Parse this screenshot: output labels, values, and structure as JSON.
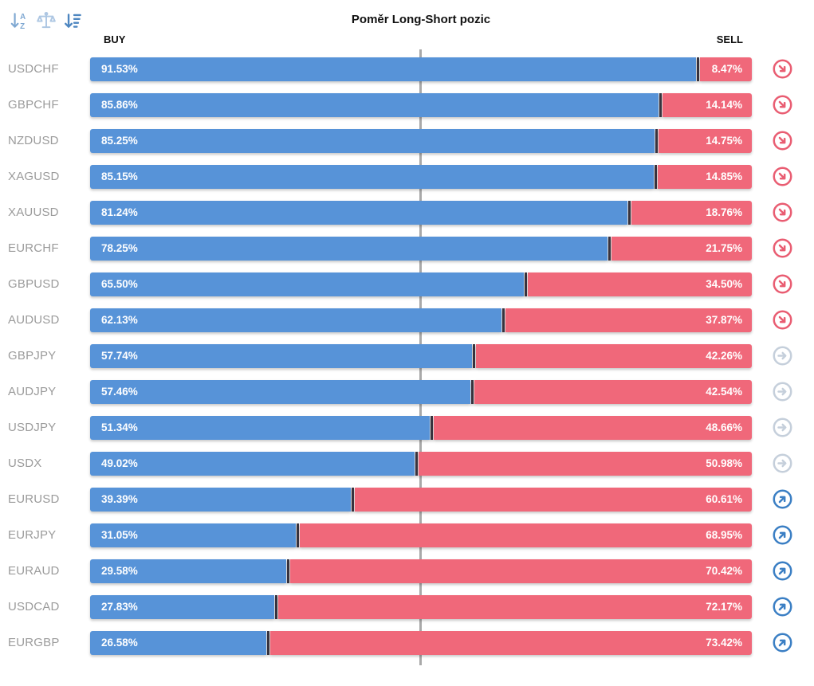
{
  "title": "Poměr Long-Short pozic",
  "columns": {
    "buy": "BUY",
    "sell": "SELL"
  },
  "toolbar": {
    "icons": [
      {
        "name": "sort-alphabetical-icon",
        "color": "#7fa8d2"
      },
      {
        "name": "scales-balance-icon",
        "color": "#aec7e3"
      },
      {
        "name": "sort-amount-desc-icon",
        "color": "#4d86c0"
      }
    ]
  },
  "colors": {
    "buy_bar": "#5793d8",
    "sell_bar": "#f0687a",
    "bar_divider": "#3a3540",
    "center_line": "#a9a9a9",
    "pair_label": "#9b9b9b",
    "signal_down": "#e95d72",
    "signal_neutral": "#c5cfdb",
    "signal_up": "#3b7fc4"
  },
  "chart_data": {
    "type": "bar",
    "orientation": "horizontal",
    "stacked": true,
    "title": "Poměr Long-Short pozic",
    "xlim": [
      0,
      100
    ],
    "grid": false,
    "legend_position": "top (BUY left, SELL right)",
    "categories": [
      "USDCHF",
      "GBPCHF",
      "NZDUSD",
      "XAGUSD",
      "XAUUSD",
      "EURCHF",
      "GBPUSD",
      "AUDUSD",
      "GBPJPY",
      "AUDJPY",
      "USDJPY",
      "USDX",
      "EURUSD",
      "EURJPY",
      "EURAUD",
      "USDCAD",
      "EURGBP"
    ],
    "series": [
      {
        "name": "BUY",
        "values": [
          91.53,
          85.86,
          85.25,
          85.15,
          81.24,
          78.25,
          65.5,
          62.13,
          57.74,
          57.46,
          51.34,
          49.02,
          39.39,
          31.05,
          29.58,
          27.83,
          26.58
        ]
      },
      {
        "name": "SELL",
        "values": [
          8.47,
          14.14,
          14.75,
          14.85,
          18.76,
          21.75,
          34.5,
          37.87,
          42.26,
          42.54,
          48.66,
          50.98,
          60.61,
          68.95,
          70.42,
          72.17,
          73.42
        ]
      }
    ],
    "signals": [
      "down",
      "down",
      "down",
      "down",
      "down",
      "down",
      "down",
      "down",
      "neutral",
      "neutral",
      "neutral",
      "neutral",
      "up",
      "up",
      "up",
      "up",
      "up"
    ]
  },
  "rows": [
    {
      "pair": "USDCHF",
      "buy_label": "91.53%",
      "sell_label": "8.47%",
      "buy": 91.53,
      "signal": "down"
    },
    {
      "pair": "GBPCHF",
      "buy_label": "85.86%",
      "sell_label": "14.14%",
      "buy": 85.86,
      "signal": "down"
    },
    {
      "pair": "NZDUSD",
      "buy_label": "85.25%",
      "sell_label": "14.75%",
      "buy": 85.25,
      "signal": "down"
    },
    {
      "pair": "XAGUSD",
      "buy_label": "85.15%",
      "sell_label": "14.85%",
      "buy": 85.15,
      "signal": "down"
    },
    {
      "pair": "XAUUSD",
      "buy_label": "81.24%",
      "sell_label": "18.76%",
      "buy": 81.24,
      "signal": "down"
    },
    {
      "pair": "EURCHF",
      "buy_label": "78.25%",
      "sell_label": "21.75%",
      "buy": 78.25,
      "signal": "down"
    },
    {
      "pair": "GBPUSD",
      "buy_label": "65.50%",
      "sell_label": "34.50%",
      "buy": 65.5,
      "signal": "down"
    },
    {
      "pair": "AUDUSD",
      "buy_label": "62.13%",
      "sell_label": "37.87%",
      "buy": 62.13,
      "signal": "down"
    },
    {
      "pair": "GBPJPY",
      "buy_label": "57.74%",
      "sell_label": "42.26%",
      "buy": 57.74,
      "signal": "neutral"
    },
    {
      "pair": "AUDJPY",
      "buy_label": "57.46%",
      "sell_label": "42.54%",
      "buy": 57.46,
      "signal": "neutral"
    },
    {
      "pair": "USDJPY",
      "buy_label": "51.34%",
      "sell_label": "48.66%",
      "buy": 51.34,
      "signal": "neutral"
    },
    {
      "pair": "USDX",
      "buy_label": "49.02%",
      "sell_label": "50.98%",
      "buy": 49.02,
      "signal": "neutral"
    },
    {
      "pair": "EURUSD",
      "buy_label": "39.39%",
      "sell_label": "60.61%",
      "buy": 39.39,
      "signal": "up"
    },
    {
      "pair": "EURJPY",
      "buy_label": "31.05%",
      "sell_label": "68.95%",
      "buy": 31.05,
      "signal": "up"
    },
    {
      "pair": "EURAUD",
      "buy_label": "29.58%",
      "sell_label": "70.42%",
      "buy": 29.58,
      "signal": "up"
    },
    {
      "pair": "USDCAD",
      "buy_label": "27.83%",
      "sell_label": "72.17%",
      "buy": 27.83,
      "signal": "up"
    },
    {
      "pair": "EURGBP",
      "buy_label": "26.58%",
      "sell_label": "73.42%",
      "buy": 26.58,
      "signal": "up"
    }
  ]
}
